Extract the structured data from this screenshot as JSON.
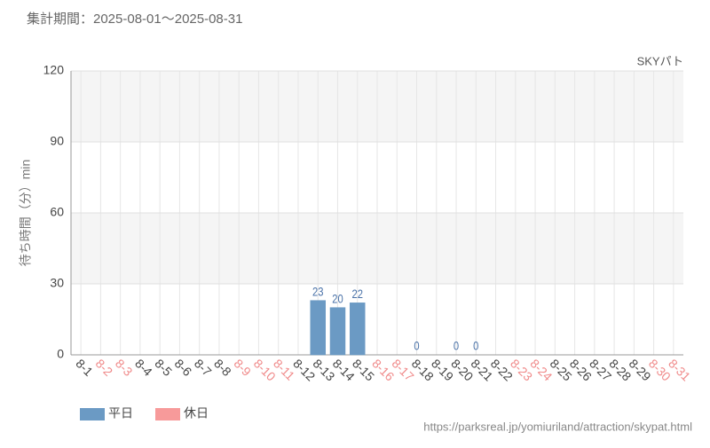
{
  "chart_data": {
    "type": "bar",
    "subtitle": "集計期間：2025-08-01～2025-08-31",
    "title": "SKYパト",
    "y_label": "待ち時間（分）min",
    "source": "https://parksreal.jp/yomiuriland/attraction/skypat.html",
    "categories": [
      "8-1",
      "8-2",
      "8-3",
      "8-4",
      "8-5",
      "8-6",
      "8-7",
      "8-8",
      "8-9",
      "8-10",
      "8-11",
      "8-12",
      "8-13",
      "8-14",
      "8-15",
      "8-16",
      "8-17",
      "8-18",
      "8-19",
      "8-20",
      "8-21",
      "8-22",
      "8-23",
      "8-24",
      "8-25",
      "8-26",
      "8-27",
      "8-28",
      "8-29",
      "8-30",
      "8-31"
    ],
    "category_colors": [
      "#444444",
      "#f08a8a",
      "#f08a8a",
      "#444444",
      "#444444",
      "#444444",
      "#444444",
      "#444444",
      "#f08a8a",
      "#f08a8a",
      "#f08a8a",
      "#444444",
      "#444444",
      "#444444",
      "#444444",
      "#f08a8a",
      "#f08a8a",
      "#444444",
      "#444444",
      "#444444",
      "#444444",
      "#444444",
      "#f08a8a",
      "#f08a8a",
      "#444444",
      "#444444",
      "#444444",
      "#444444",
      "#444444",
      "#f08a8a",
      "#f08a8a"
    ],
    "series": [
      {
        "name": "平日",
        "color": "#6b9ac4",
        "values": [
          null,
          null,
          null,
          null,
          null,
          null,
          null,
          null,
          null,
          null,
          null,
          null,
          23,
          20,
          22,
          null,
          null,
          0,
          null,
          0,
          0,
          null,
          null,
          null,
          null,
          null,
          null,
          null,
          null,
          null,
          null
        ]
      },
      {
        "name": "休日",
        "color": "#f79a9a",
        "values": [
          null,
          null,
          null,
          null,
          null,
          null,
          null,
          null,
          null,
          null,
          null,
          null,
          null,
          null,
          null,
          null,
          null,
          null,
          null,
          null,
          null,
          null,
          null,
          null,
          null,
          null,
          null,
          null,
          null,
          null,
          null
        ]
      }
    ],
    "ylim": [
      0,
      120
    ],
    "yticks": [
      0,
      30,
      60,
      90,
      120
    ],
    "grid": true
  }
}
